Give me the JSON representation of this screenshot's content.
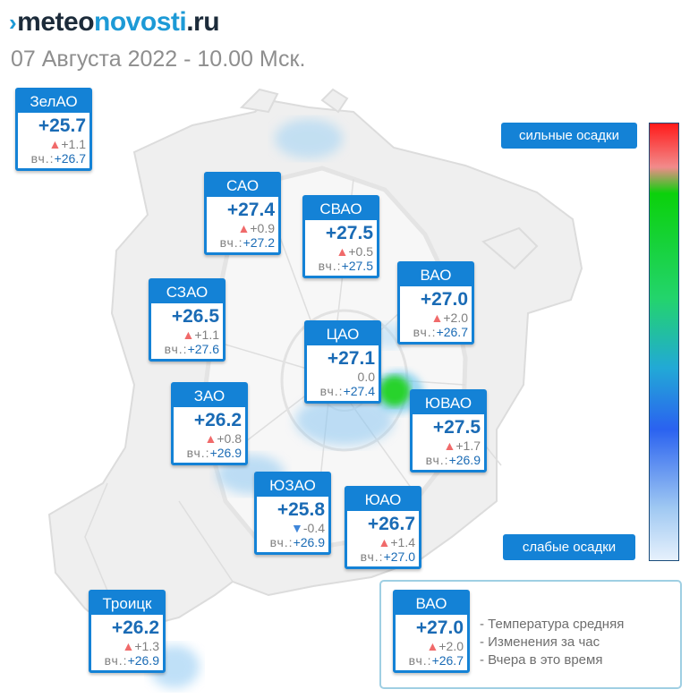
{
  "header": {
    "logo": {
      "part1": "meteo",
      "part2": "novosti",
      "part3": ".ru"
    },
    "datetime": "07 Августа 2022 - 10.00 Мск."
  },
  "districts": [
    {
      "id": "zelao",
      "name": "ЗелАО",
      "temp": "+25.7",
      "dir": "up",
      "change": "+1.1",
      "yesterday_label": "вч.:",
      "yesterday": "+26.7"
    },
    {
      "id": "sao",
      "name": "САО",
      "temp": "+27.4",
      "dir": "up",
      "change": "+0.9",
      "yesterday_label": "вч.:",
      "yesterday": "+27.2"
    },
    {
      "id": "svao",
      "name": "СВАО",
      "temp": "+27.5",
      "dir": "up",
      "change": "+0.5",
      "yesterday_label": "вч.:",
      "yesterday": "+27.5"
    },
    {
      "id": "vao",
      "name": "ВАО",
      "temp": "+27.0",
      "dir": "up",
      "change": "+2.0",
      "yesterday_label": "вч.:",
      "yesterday": "+26.7"
    },
    {
      "id": "szao",
      "name": "СЗАО",
      "temp": "+26.5",
      "dir": "up",
      "change": "+1.1",
      "yesterday_label": "вч.:",
      "yesterday": "+27.6"
    },
    {
      "id": "cao",
      "name": "ЦАО",
      "temp": "+27.1",
      "dir": "none",
      "change": "0.0",
      "yesterday_label": "вч.:",
      "yesterday": "+27.4"
    },
    {
      "id": "zao",
      "name": "ЗАО",
      "temp": "+26.2",
      "dir": "up",
      "change": "+0.8",
      "yesterday_label": "вч.:",
      "yesterday": "+26.9"
    },
    {
      "id": "yuvao",
      "name": "ЮВАО",
      "temp": "+27.5",
      "dir": "up",
      "change": "+1.7",
      "yesterday_label": "вч.:",
      "yesterday": "+26.9"
    },
    {
      "id": "yuzao",
      "name": "ЮЗАО",
      "temp": "+25.8",
      "dir": "down",
      "change": "-0.4",
      "yesterday_label": "вч.:",
      "yesterday": "+26.9"
    },
    {
      "id": "yuao",
      "name": "ЮАО",
      "temp": "+26.7",
      "dir": "up",
      "change": "+1.4",
      "yesterday_label": "вч.:",
      "yesterday": "+27.0"
    },
    {
      "id": "troitsk",
      "name": "Троицк",
      "temp": "+26.2",
      "dir": "up",
      "change": "+1.3",
      "yesterday_label": "вч.:",
      "yesterday": "+26.9"
    }
  ],
  "precip_scale": {
    "top_label": "сильные осадки",
    "bottom_label": "слабые осадки",
    "colors": [
      "#ff1a1a",
      "#0bd10b",
      "#22a9d6",
      "#2a62f0",
      "#e6f1fc"
    ]
  },
  "legend": {
    "sample": {
      "name": "ВАО",
      "temp": "+27.0",
      "dir": "up",
      "change": "+2.0",
      "yesterday_label": "вч.:",
      "yesterday": "+26.7"
    },
    "items": [
      "- Температура средняя",
      "- Изменения за час",
      "- Вчера в это время"
    ]
  },
  "colors": {
    "accent": "#1482d6",
    "temp_text": "#1a6bb5",
    "arrow_up": "#f06a6a",
    "arrow_down": "#3f86d9"
  }
}
